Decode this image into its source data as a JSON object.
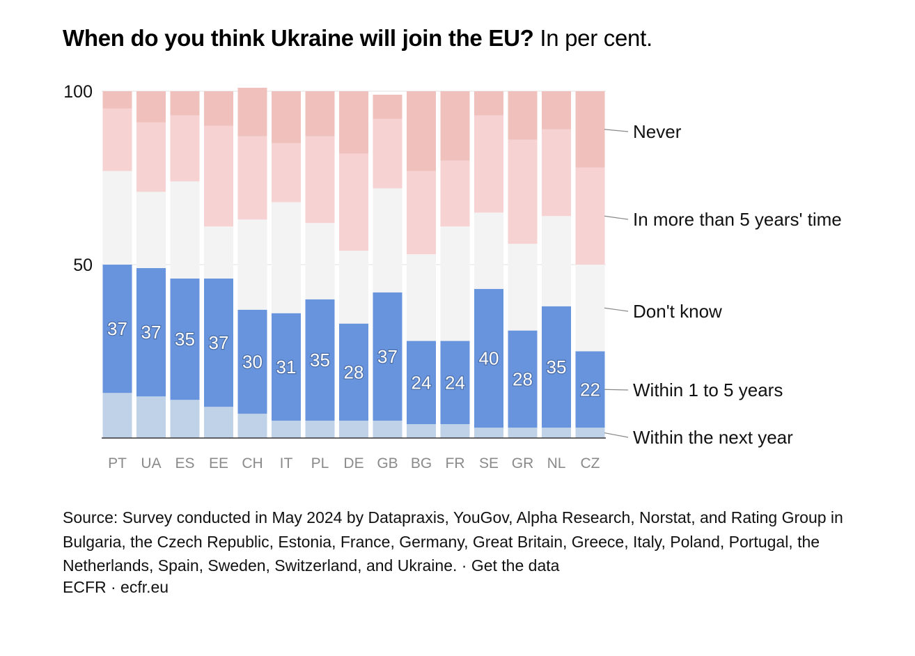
{
  "title": {
    "bold": "When do you think Ukraine will join the EU?",
    "sub": "In per cent."
  },
  "chart_data": {
    "type": "bar",
    "stacked": true,
    "orientation": "vertical",
    "categories": [
      "PT",
      "UA",
      "ES",
      "EE",
      "CH",
      "IT",
      "PL",
      "DE",
      "GB",
      "BG",
      "FR",
      "SE",
      "GR",
      "NL",
      "CZ"
    ],
    "ylim": [
      0,
      100
    ],
    "yticks": [
      100,
      50
    ],
    "grid": true,
    "legend": "right-side direct labels",
    "series": [
      {
        "name": "Within the next year",
        "color": "#c0d2e8",
        "values": [
          13,
          12,
          11,
          9,
          7,
          5,
          5,
          5,
          5,
          4,
          4,
          3,
          3,
          3,
          3
        ]
      },
      {
        "name": "Within 1 to 5 years",
        "color": "#6794dc",
        "values": [
          37,
          37,
          35,
          37,
          30,
          31,
          35,
          28,
          37,
          24,
          24,
          40,
          28,
          35,
          22
        ]
      },
      {
        "name": "Don't know",
        "color": "#f3f3f4",
        "values": [
          27,
          22,
          28,
          15,
          26,
          32,
          22,
          21,
          30,
          25,
          33,
          22,
          25,
          26,
          25
        ]
      },
      {
        "name": "In more than 5 years' time",
        "color": "#f6d2d2",
        "values": [
          18,
          20,
          19,
          29,
          24,
          17,
          25,
          28,
          20,
          24,
          19,
          28,
          30,
          25,
          28
        ]
      },
      {
        "name": "Never",
        "color": "#f0c0bd",
        "values": [
          5,
          9,
          7,
          10,
          14,
          15,
          13,
          18,
          7,
          23,
          20,
          7,
          14,
          11,
          22
        ]
      }
    ],
    "data_labels": {
      "series": "Within 1 to 5 years",
      "values": [
        37,
        37,
        35,
        37,
        30,
        31,
        35,
        28,
        37,
        24,
        24,
        40,
        28,
        35,
        22
      ]
    }
  },
  "source": {
    "text": "Source: Survey conducted in May 2024 by Datapraxis, YouGov, Alpha Research, Norstat, and Rating Group in Bulgaria, the Czech Republic, Estonia, France, Germany, Great Britain, Greece, Italy, Poland, Portugal, the Netherlands, Spain, Sweden, Switzerland, and Ukraine.",
    "separator": " · ",
    "link": "Get the data"
  },
  "credit": "ECFR · ecfr.eu"
}
